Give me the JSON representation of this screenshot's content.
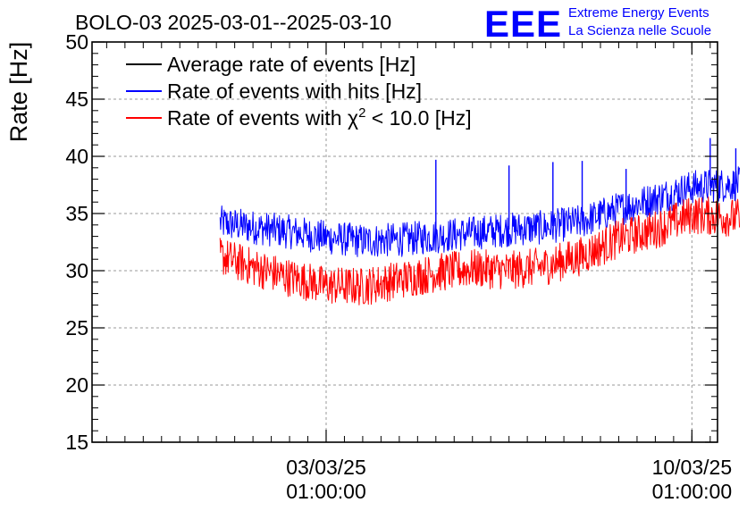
{
  "chart_data": {
    "type": "line",
    "title": "BOLO-03 2025-03-01--2025-03-10",
    "xlabel": "",
    "ylabel": "Rate [Hz]",
    "ylim": [
      15,
      50
    ],
    "y_ticks": [
      "15",
      "20",
      "25",
      "30",
      "35",
      "40",
      "45",
      "50"
    ],
    "x_range_days": [
      -4.4,
      12.7
    ],
    "x_ticks": [
      {
        "day": 2.0,
        "date": "03/03/25",
        "time": "01:00:00"
      },
      {
        "day": 12.0,
        "date": "10/03/25",
        "time": "01:00:00"
      }
    ],
    "grid": true,
    "legend_position": "top-left",
    "series": [
      {
        "name": "Average rate of events [Hz]",
        "color": "#000000",
        "x_days": [],
        "values": []
      },
      {
        "name": "Rate of events with hits [Hz]",
        "color": "#0000ff",
        "noise_band_hz": 3.0,
        "x_days": [
          -0.9,
          0.0,
          1.0,
          2.0,
          3.0,
          4.0,
          5.0,
          6.0,
          7.0,
          8.0,
          9.0,
          10.0,
          11.0,
          12.0,
          13.3
        ],
        "values": [
          34.2,
          33.8,
          33.4,
          32.9,
          32.6,
          32.7,
          33.0,
          33.3,
          33.6,
          33.8,
          34.3,
          35.4,
          36.3,
          37.3,
          37.6
        ],
        "spikes": [
          {
            "x_day": 5.0,
            "value": 39.7
          },
          {
            "x_day": 7.0,
            "value": 39.2
          },
          {
            "x_day": 8.2,
            "value": 39.5
          },
          {
            "x_day": 9.0,
            "value": 39.6
          },
          {
            "x_day": 10.2,
            "value": 38.9
          },
          {
            "x_day": 12.5,
            "value": 41.6
          },
          {
            "x_day": 13.2,
            "value": 40.7
          }
        ]
      },
      {
        "name": "Rate of events with χ² < 10.0 [Hz]",
        "color": "#ff0000",
        "noise_band_hz": 3.4,
        "x_days": [
          -0.9,
          0.0,
          1.0,
          2.0,
          3.0,
          4.0,
          5.0,
          6.0,
          7.0,
          8.0,
          9.0,
          10.0,
          11.0,
          12.0,
          13.3
        ],
        "values": [
          31.3,
          30.3,
          29.4,
          28.7,
          28.6,
          29.2,
          29.8,
          30.2,
          30.0,
          30.4,
          31.3,
          32.8,
          33.6,
          34.9,
          34.6
        ]
      }
    ],
    "legend": [
      {
        "prefix": "Average rate of events [Hz]",
        "sup": "",
        "suffix": "",
        "color": "#000000"
      },
      {
        "prefix": "Rate of events with hits [Hz]",
        "sup": "",
        "suffix": "",
        "color": "#0000ff"
      },
      {
        "prefix": "Rate of events with χ",
        "sup": "2",
        "suffix": " < 10.0 [Hz]",
        "color": "#ff0000"
      }
    ]
  },
  "logo": {
    "mark": "EEE",
    "line1": "Extreme Energy Events",
    "line2": "La Scienza nelle Scuole",
    "color": "#0000ff"
  }
}
